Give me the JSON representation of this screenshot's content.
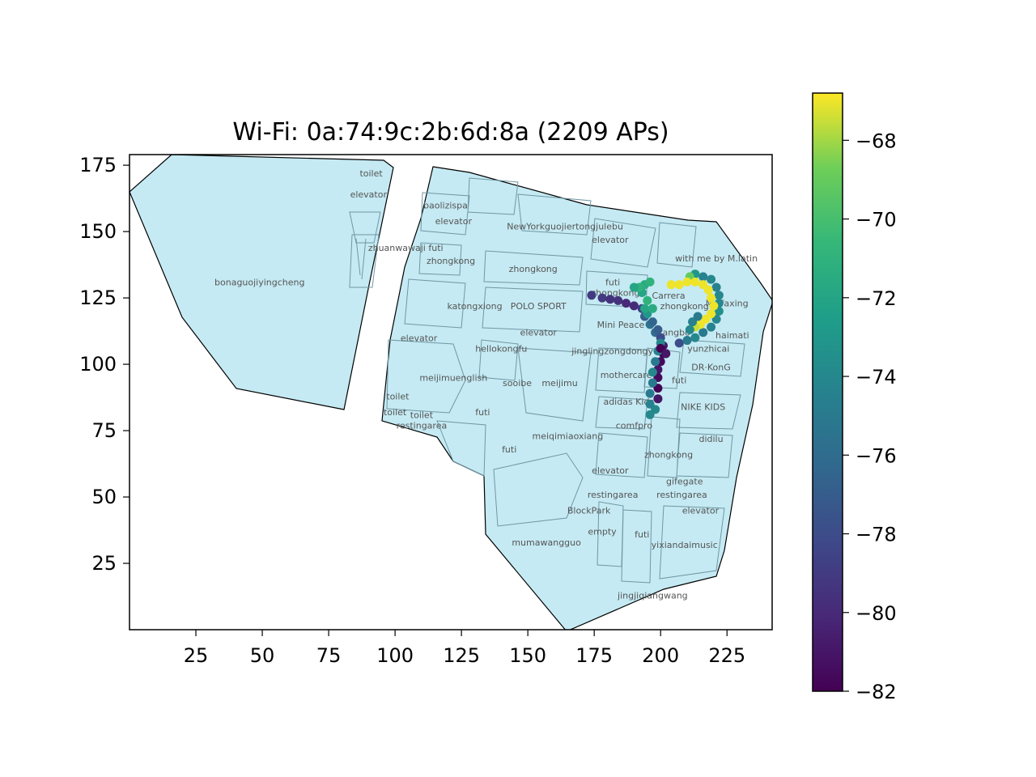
{
  "chart_data": {
    "type": "scatter",
    "title": "Wi-Fi: 0a:74:9c:2b:6d:8a (2209 APs)",
    "xlabel": "",
    "ylabel": "",
    "xlim": [
      0,
      242
    ],
    "ylim": [
      0,
      179
    ],
    "x_ticks": [
      25,
      50,
      75,
      100,
      125,
      150,
      175,
      200,
      225
    ],
    "y_ticks": [
      25,
      50,
      75,
      100,
      125,
      150,
      175
    ],
    "grid": false,
    "colorbar": {
      "colormap": "viridis",
      "range": [
        -82,
        -66.8
      ],
      "ticks": [
        -68,
        -70,
        -72,
        -74,
        -76,
        -78,
        -80,
        -82
      ],
      "tick_labels": [
        "−68",
        "−70",
        "−72",
        "−74",
        "−76",
        "−78",
        "−80",
        "−82"
      ]
    },
    "map_fill_color": "#c5eaf3",
    "map_edge_color": "#000000",
    "shop_labels": [
      {
        "text": "toilet",
        "x": 91,
        "y": 172
      },
      {
        "text": "elevator",
        "x": 90,
        "y": 164
      },
      {
        "text": "baolizispa",
        "x": 119,
        "y": 160
      },
      {
        "text": "elevator",
        "x": 122,
        "y": 154
      },
      {
        "text": "NewYorkguojiertongjulebu",
        "x": 164,
        "y": 152
      },
      {
        "text": "elevator",
        "x": 181,
        "y": 147
      },
      {
        "text": "zhuanwawaji futi",
        "x": 104,
        "y": 144
      },
      {
        "text": "zhongkong",
        "x": 121,
        "y": 139
      },
      {
        "text": "with me by M.latin",
        "x": 221,
        "y": 140
      },
      {
        "text": "zhongkong",
        "x": 152,
        "y": 136
      },
      {
        "text": "bonaguojiyingcheng",
        "x": 49,
        "y": 131
      },
      {
        "text": "futi",
        "x": 182,
        "y": 131
      },
      {
        "text": "zhongkong",
        "x": 183,
        "y": 127
      },
      {
        "text": "Carrera",
        "x": 203,
        "y": 126
      },
      {
        "text": "katongxiong",
        "x": 130,
        "y": 122
      },
      {
        "text": "POLO SPORT",
        "x": 154,
        "y": 122
      },
      {
        "text": "zhongkong",
        "x": 209,
        "y": 122
      },
      {
        "text": "M+faxing",
        "x": 225,
        "y": 123
      },
      {
        "text": "Mini Peace",
        "x": 185,
        "y": 115
      },
      {
        "text": "elevator",
        "x": 154,
        "y": 112
      },
      {
        "text": "kangbo",
        "x": 205,
        "y": 112
      },
      {
        "text": "haimati",
        "x": 227,
        "y": 111
      },
      {
        "text": "elevator",
        "x": 109,
        "y": 110
      },
      {
        "text": "yunzhicai",
        "x": 218,
        "y": 106
      },
      {
        "text": "hellokongfu",
        "x": 140,
        "y": 106
      },
      {
        "text": "jinglingzongdongyuan",
        "x": 185,
        "y": 105
      },
      {
        "text": "DR·KonG",
        "x": 219,
        "y": 99
      },
      {
        "text": "meijimuenglish",
        "x": 122,
        "y": 95
      },
      {
        "text": "mothercare",
        "x": 187,
        "y": 96
      },
      {
        "text": "futi",
        "x": 207,
        "y": 94
      },
      {
        "text": "sooibe",
        "x": 146,
        "y": 93
      },
      {
        "text": "meijimu",
        "x": 162,
        "y": 93
      },
      {
        "text": "toilet",
        "x": 101,
        "y": 88
      },
      {
        "text": "adidas Kids",
        "x": 188,
        "y": 86
      },
      {
        "text": "NIKE KIDS",
        "x": 216,
        "y": 84
      },
      {
        "text": "toilet",
        "x": 100,
        "y": 82
      },
      {
        "text": "toilet",
        "x": 110,
        "y": 81
      },
      {
        "text": "futi",
        "x": 133,
        "y": 82
      },
      {
        "text": "restingarea",
        "x": 110,
        "y": 77
      },
      {
        "text": "comfpro",
        "x": 190,
        "y": 77
      },
      {
        "text": "meiqimiaoxiang",
        "x": 165,
        "y": 73
      },
      {
        "text": "didilu",
        "x": 219,
        "y": 72
      },
      {
        "text": "futi",
        "x": 143,
        "y": 68
      },
      {
        "text": "zhongkong",
        "x": 203,
        "y": 66
      },
      {
        "text": "elevator",
        "x": 181,
        "y": 60
      },
      {
        "text": "gifegate",
        "x": 209,
        "y": 56
      },
      {
        "text": "restingarea",
        "x": 182,
        "y": 51
      },
      {
        "text": "restingarea",
        "x": 208,
        "y": 51
      },
      {
        "text": "BlockPark",
        "x": 173,
        "y": 45
      },
      {
        "text": "elevator",
        "x": 215,
        "y": 45
      },
      {
        "text": "empty",
        "x": 178,
        "y": 37
      },
      {
        "text": "futi",
        "x": 193,
        "y": 36
      },
      {
        "text": "mumawangguo",
        "x": 157,
        "y": 33
      },
      {
        "text": "yixiandaimusic",
        "x": 209,
        "y": 32
      },
      {
        "text": "jingjiqiangwang",
        "x": 197,
        "y": 13
      }
    ],
    "points": [
      {
        "x": 174,
        "y": 126,
        "v": -79
      },
      {
        "x": 178,
        "y": 125,
        "v": -79
      },
      {
        "x": 181,
        "y": 124.5,
        "v": -79.5
      },
      {
        "x": 184,
        "y": 124,
        "v": -79.5
      },
      {
        "x": 187,
        "y": 123,
        "v": -80
      },
      {
        "x": 190,
        "y": 122,
        "v": -80
      },
      {
        "x": 193,
        "y": 121,
        "v": -79
      },
      {
        "x": 194,
        "y": 118,
        "v": -77
      },
      {
        "x": 196,
        "y": 115,
        "v": -75.5
      },
      {
        "x": 198,
        "y": 112,
        "v": -76
      },
      {
        "x": 200,
        "y": 110,
        "v": -78
      },
      {
        "x": 201,
        "y": 107,
        "v": -81
      },
      {
        "x": 201,
        "y": 104,
        "v": -82
      },
      {
        "x": 200,
        "y": 101,
        "v": -81.5
      },
      {
        "x": 199,
        "y": 98,
        "v": -81
      },
      {
        "x": 199,
        "y": 95,
        "v": -81.5
      },
      {
        "x": 199,
        "y": 91,
        "v": -82
      },
      {
        "x": 199,
        "y": 87,
        "v": -81
      },
      {
        "x": 198,
        "y": 83,
        "v": -74
      },
      {
        "x": 196,
        "y": 81,
        "v": -74
      },
      {
        "x": 196,
        "y": 85,
        "v": -74.5
      },
      {
        "x": 196,
        "y": 89,
        "v": -75
      },
      {
        "x": 197,
        "y": 93,
        "v": -75
      },
      {
        "x": 197,
        "y": 97,
        "v": -74
      },
      {
        "x": 198,
        "y": 101,
        "v": -75
      },
      {
        "x": 199,
        "y": 105,
        "v": -74.5
      },
      {
        "x": 200,
        "y": 108,
        "v": -74
      },
      {
        "x": 200,
        "y": 106,
        "v": -82
      },
      {
        "x": 202,
        "y": 104,
        "v": -81
      },
      {
        "x": 199,
        "y": 113,
        "v": -77
      },
      {
        "x": 197,
        "y": 116,
        "v": -76.5
      },
      {
        "x": 195,
        "y": 119,
        "v": -73
      },
      {
        "x": 194,
        "y": 121,
        "v": -72
      },
      {
        "x": 195,
        "y": 124,
        "v": -71
      },
      {
        "x": 197,
        "y": 121,
        "v": -71.5
      },
      {
        "x": 193,
        "y": 127,
        "v": -72
      },
      {
        "x": 194,
        "y": 130,
        "v": -71.5
      },
      {
        "x": 196,
        "y": 131,
        "v": -71
      },
      {
        "x": 192,
        "y": 129,
        "v": -71
      },
      {
        "x": 190,
        "y": 129,
        "v": -72
      },
      {
        "x": 207,
        "y": 108,
        "v": -78
      },
      {
        "x": 210,
        "y": 109,
        "v": -75
      },
      {
        "x": 213,
        "y": 110,
        "v": -74
      },
      {
        "x": 216,
        "y": 112,
        "v": -75
      },
      {
        "x": 219,
        "y": 114,
        "v": -74.5
      },
      {
        "x": 221,
        "y": 117,
        "v": -74
      },
      {
        "x": 222,
        "y": 120,
        "v": -73.5
      },
      {
        "x": 222,
        "y": 123,
        "v": -74
      },
      {
        "x": 222,
        "y": 126,
        "v": -74
      },
      {
        "x": 221,
        "y": 129,
        "v": -74.5
      },
      {
        "x": 219,
        "y": 132,
        "v": -74
      },
      {
        "x": 216,
        "y": 133,
        "v": -74.5
      },
      {
        "x": 213,
        "y": 134,
        "v": -73
      },
      {
        "x": 211,
        "y": 133,
        "v": -69
      },
      {
        "x": 204,
        "y": 130,
        "v": -67
      },
      {
        "x": 207,
        "y": 130,
        "v": -67
      },
      {
        "x": 210,
        "y": 131,
        "v": -67
      },
      {
        "x": 213,
        "y": 131,
        "v": -67
      },
      {
        "x": 216,
        "y": 130,
        "v": -67
      },
      {
        "x": 218,
        "y": 128,
        "v": -67
      },
      {
        "x": 219,
        "y": 125,
        "v": -67
      },
      {
        "x": 220,
        "y": 122,
        "v": -67
      },
      {
        "x": 219,
        "y": 119,
        "v": -67
      },
      {
        "x": 217,
        "y": 117,
        "v": -67
      },
      {
        "x": 215,
        "y": 115,
        "v": -67
      },
      {
        "x": 213,
        "y": 114,
        "v": -67.5
      },
      {
        "x": 211,
        "y": 113,
        "v": -74
      },
      {
        "x": 212,
        "y": 116,
        "v": -74.5
      },
      {
        "x": 214,
        "y": 118,
        "v": -75
      }
    ]
  }
}
